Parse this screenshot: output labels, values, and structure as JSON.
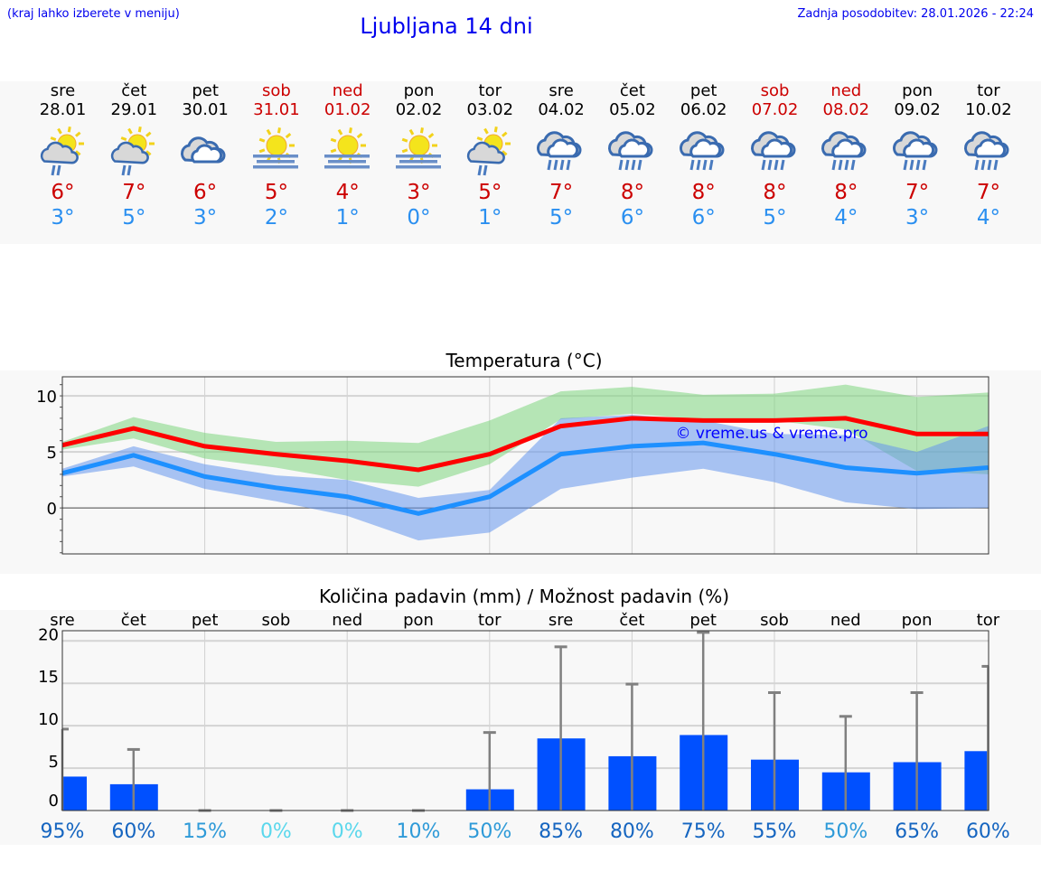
{
  "header": {
    "hint": "(kraj lahko izberete v meniju)",
    "title": "Ljubljana 14 dni",
    "updated": "Zadnja posodobitev: 28.01.2026 - 22:24"
  },
  "days": [
    {
      "name": "sre",
      "date": "28.01",
      "weekend": false,
      "icon": "sun-cloud-rain-icon",
      "max": "6°",
      "min": "3°"
    },
    {
      "name": "čet",
      "date": "29.01",
      "weekend": false,
      "icon": "sun-cloud-rain-icon",
      "max": "7°",
      "min": "5°"
    },
    {
      "name": "pet",
      "date": "30.01",
      "weekend": false,
      "icon": "cloudy-icon",
      "max": "6°",
      "min": "3°"
    },
    {
      "name": "sob",
      "date": "31.01",
      "weekend": true,
      "icon": "sun-fog-icon",
      "max": "5°",
      "min": "2°"
    },
    {
      "name": "ned",
      "date": "01.02",
      "weekend": true,
      "icon": "sun-fog-icon",
      "max": "4°",
      "min": "1°"
    },
    {
      "name": "pon",
      "date": "02.02",
      "weekend": false,
      "icon": "sun-fog-icon",
      "max": "3°",
      "min": "0°"
    },
    {
      "name": "tor",
      "date": "03.02",
      "weekend": false,
      "icon": "sun-cloud-rain-icon",
      "max": "5°",
      "min": "1°"
    },
    {
      "name": "sre",
      "date": "04.02",
      "weekend": false,
      "icon": "rain-cloud-icon",
      "max": "7°",
      "min": "5°"
    },
    {
      "name": "čet",
      "date": "05.02",
      "weekend": false,
      "icon": "rain-cloud-icon",
      "max": "8°",
      "min": "6°"
    },
    {
      "name": "pet",
      "date": "06.02",
      "weekend": false,
      "icon": "rain-cloud-icon",
      "max": "8°",
      "min": "6°"
    },
    {
      "name": "sob",
      "date": "07.02",
      "weekend": true,
      "icon": "rain-cloud-icon",
      "max": "8°",
      "min": "5°"
    },
    {
      "name": "ned",
      "date": "08.02",
      "weekend": true,
      "icon": "rain-cloud-icon",
      "max": "8°",
      "min": "4°"
    },
    {
      "name": "pon",
      "date": "09.02",
      "weekend": false,
      "icon": "rain-cloud-icon",
      "max": "7°",
      "min": "3°"
    },
    {
      "name": "tor",
      "date": "10.02",
      "weekend": false,
      "icon": "rain-cloud-icon",
      "max": "7°",
      "min": "4°"
    }
  ],
  "chart_data": [
    {
      "type": "line",
      "title": "Temperatura (°C)",
      "ylim": [
        -4.1,
        11.7
      ],
      "yticks": [
        0,
        5,
        10
      ],
      "watermark": "© vreme.us & vreme.pro",
      "series": [
        {
          "name": "max",
          "color": "#ff0000",
          "values": [
            5.6,
            7.1,
            5.5,
            4.8,
            4.2,
            3.4,
            4.8,
            7.3,
            8.0,
            7.8,
            7.8,
            8.0,
            6.6,
            6.6
          ]
        },
        {
          "name": "min",
          "color": "#1e90ff",
          "values": [
            3.1,
            4.7,
            2.8,
            1.8,
            1.0,
            -0.5,
            1.0,
            4.8,
            5.5,
            5.8,
            4.8,
            3.6,
            3.1,
            3.6
          ]
        }
      ],
      "bands": [
        {
          "name": "max-range",
          "color": "#7ed67e",
          "upper": [
            5.9,
            8.1,
            6.7,
            5.9,
            6.0,
            5.8,
            7.8,
            10.4,
            10.8,
            10.1,
            10.2,
            11.0,
            9.9,
            10.3
          ],
          "lower": [
            5.2,
            6.2,
            4.4,
            3.6,
            2.5,
            1.9,
            3.9,
            7.9,
            8.4,
            7.9,
            7.8,
            7.0,
            3.3,
            3.0
          ]
        },
        {
          "name": "min-range",
          "color": "#6495ed",
          "upper": [
            3.5,
            5.5,
            3.9,
            2.9,
            2.5,
            0.9,
            1.6,
            8.0,
            8.3,
            7.8,
            6.6,
            6.5,
            5.0,
            7.3
          ],
          "lower": [
            2.8,
            3.7,
            1.7,
            0.6,
            -0.7,
            -2.9,
            -2.2,
            1.7,
            2.7,
            3.5,
            2.3,
            0.5,
            -0.1,
            0.0
          ]
        }
      ]
    },
    {
      "type": "bar",
      "title": "Količina padavin (mm) / Možnost padavin (%)",
      "ylim": [
        0,
        21.2
      ],
      "yticks": [
        0,
        5,
        10,
        15,
        20
      ],
      "categories": [
        "sre",
        "čet",
        "pet",
        "sob",
        "ned",
        "pon",
        "tor",
        "sre",
        "čet",
        "pet",
        "sob",
        "ned",
        "pon",
        "tor"
      ],
      "values": [
        4.0,
        3.1,
        0,
        0,
        0,
        0,
        2.5,
        8.5,
        6.4,
        8.9,
        6.0,
        4.5,
        5.7,
        7.0
      ],
      "error_max": [
        9.6,
        7.2,
        0,
        0,
        0,
        0,
        9.2,
        19.3,
        14.9,
        21.0,
        13.9,
        11.1,
        13.9,
        17.0
      ],
      "probability": [
        "95%",
        "60%",
        "15%",
        "0%",
        "0%",
        "10%",
        "50%",
        "85%",
        "80%",
        "75%",
        "55%",
        "50%",
        "65%",
        "60%"
      ],
      "colors": {
        "bar": "#0050ff",
        "error": "#808080",
        "prob_high": "#1565c0",
        "prob_mid": "#2e9ad8",
        "prob_low": "#5ad7ec"
      }
    }
  ]
}
